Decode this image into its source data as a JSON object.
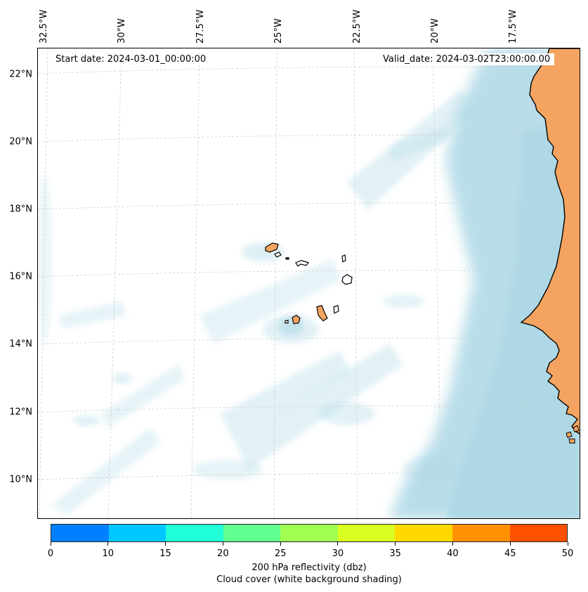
{
  "map": {
    "region": "Cape Verde / West African coast",
    "longitude_labels": [
      "32.5°W",
      "30°W",
      "27.5°W",
      "25°W",
      "22.5°W",
      "20°W",
      "17.5°W"
    ],
    "latitude_labels": [
      "22°N",
      "20°N",
      "18°N",
      "16°N",
      "14°N",
      "12°N",
      "10°N"
    ],
    "start_date": "Start date: 2024-03-01_00:00:00",
    "valid_date": "Valid_date: 2024-03-02T23:00:00.00",
    "colors": {
      "land": "#f4a460",
      "cloud": "#add8e6",
      "coastline": "#000000",
      "grid": "#cccccc"
    }
  },
  "colorbar": {
    "ticks": [
      "0",
      "10",
      "15",
      "20",
      "25",
      "30",
      "35",
      "40",
      "45",
      "50"
    ],
    "colors": [
      "#0080ff",
      "#00c8ff",
      "#20ffd8",
      "#60ff90",
      "#a0ff50",
      "#d8ff20",
      "#ffd800",
      "#ff9000",
      "#ff5000"
    ],
    "label_line1": "200 hPa reflectivity (dbz)",
    "label_line2": "Cloud cover (white background shading)"
  }
}
